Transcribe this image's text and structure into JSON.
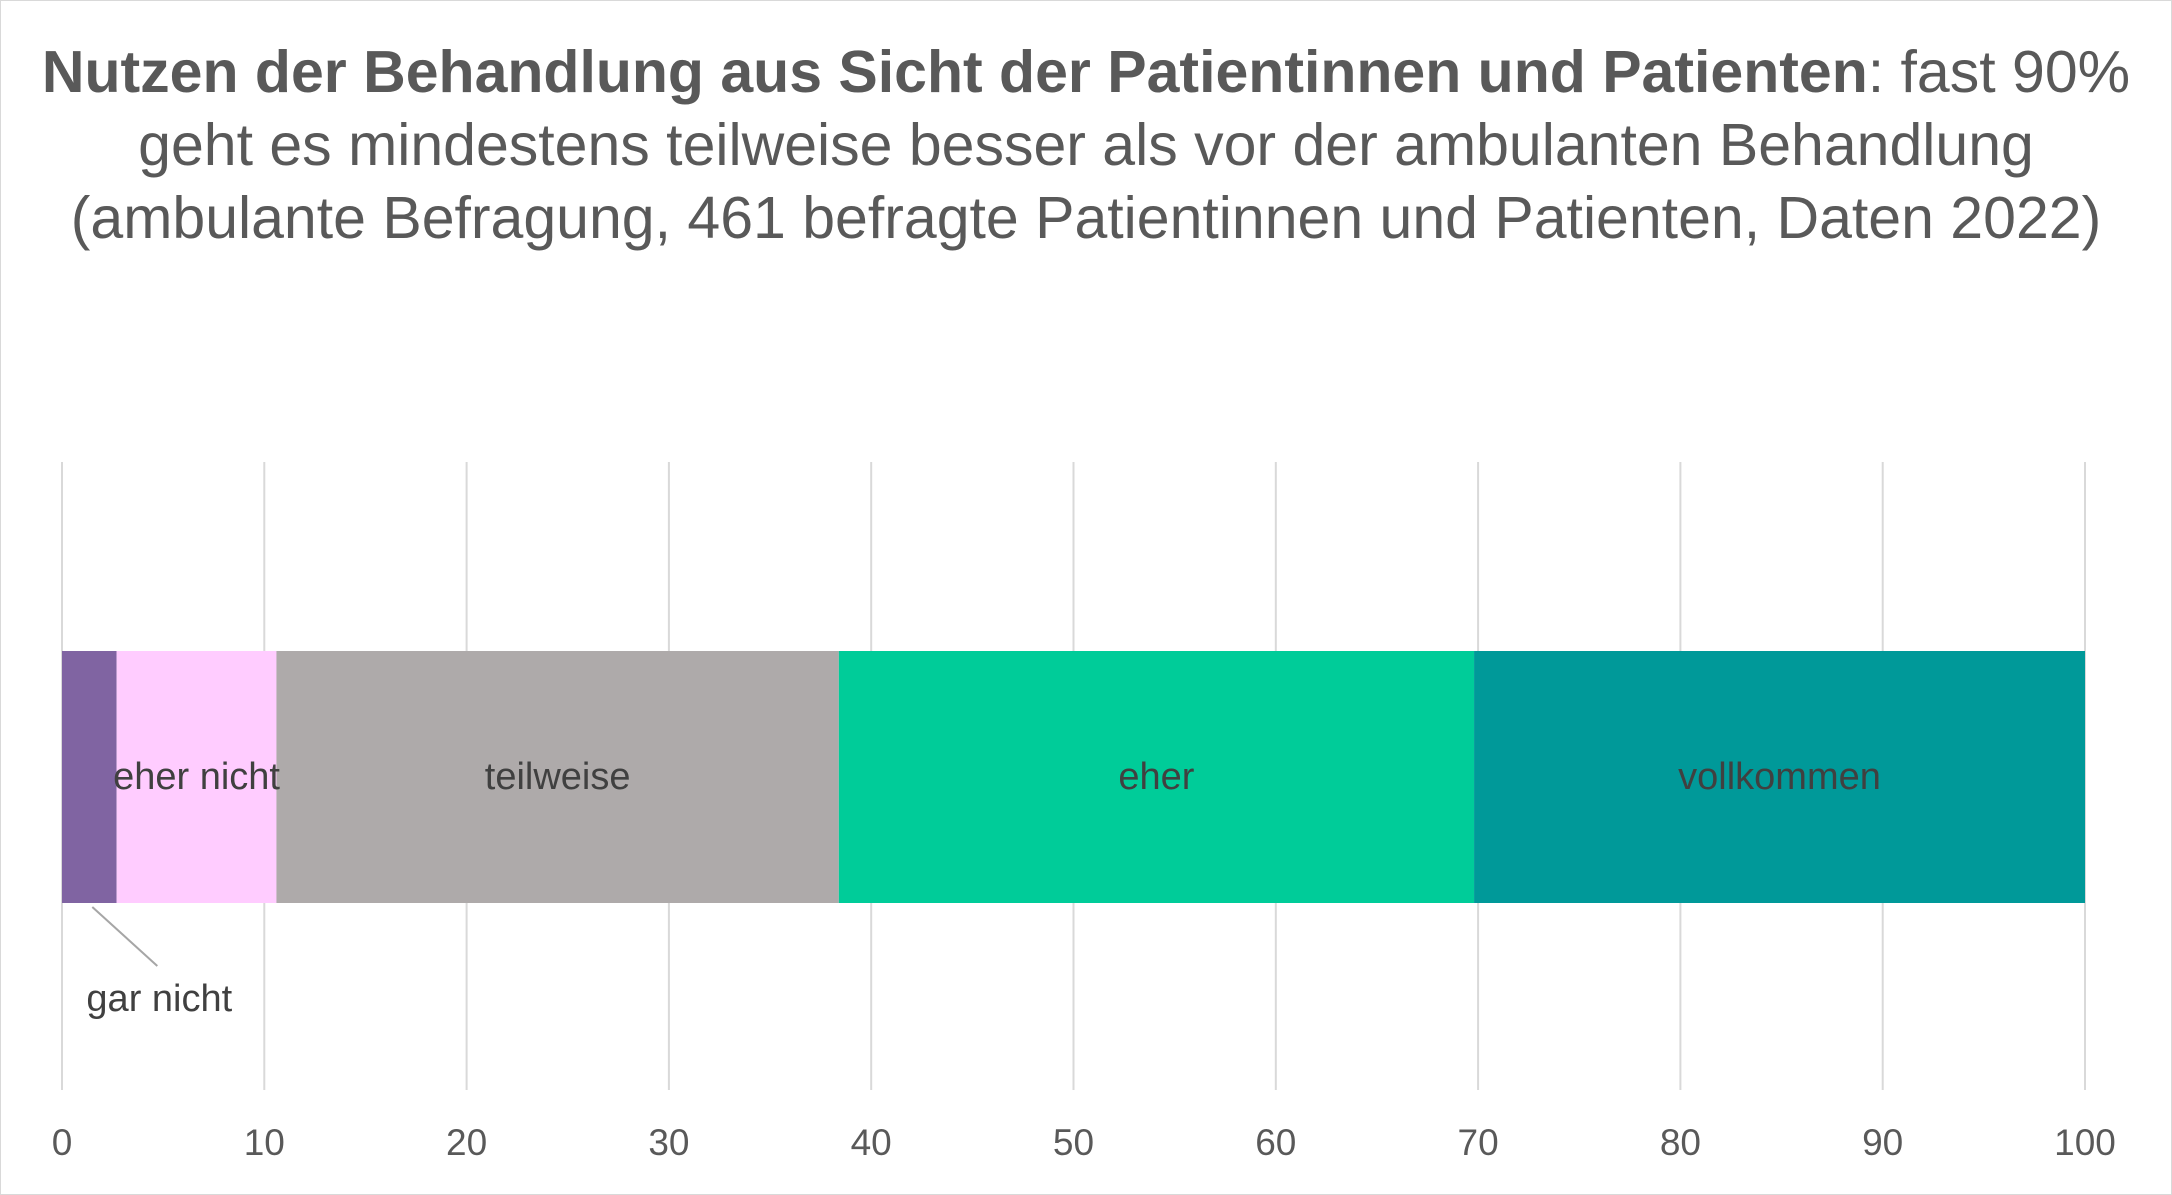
{
  "chart_data": {
    "type": "bar",
    "orientation": "horizontal",
    "stacked": true,
    "title_bold": "Nutzen der Behandlung aus Sicht der Patientinnen und Patienten",
    "title_rest": ": fast 90% geht es mindestens teilweise besser als vor der ambulanten Behandlung",
    "subtitle": "(ambulante Befragung, 461 befragte Patientinnen und Patienten, Daten 2022)",
    "xlabel": "",
    "ylabel": "",
    "xlim": [
      0,
      100
    ],
    "x_ticks": [
      "0",
      "10",
      "20",
      "30",
      "40",
      "50",
      "60",
      "70",
      "80",
      "90",
      "100"
    ],
    "grid": true,
    "legend": "none",
    "series": [
      {
        "name": "gar nicht",
        "value": 2.7,
        "color": "#8064a2",
        "label_outside": true
      },
      {
        "name": "eher nicht",
        "value": 7.9,
        "color": "#ffccff"
      },
      {
        "name": "teilweise",
        "value": 27.8,
        "color": "#aeaaaa"
      },
      {
        "name": "eher",
        "value": 31.4,
        "color": "#00cc99"
      },
      {
        "name": "vollkommen",
        "value": 30.2,
        "color": "#009999"
      }
    ]
  }
}
